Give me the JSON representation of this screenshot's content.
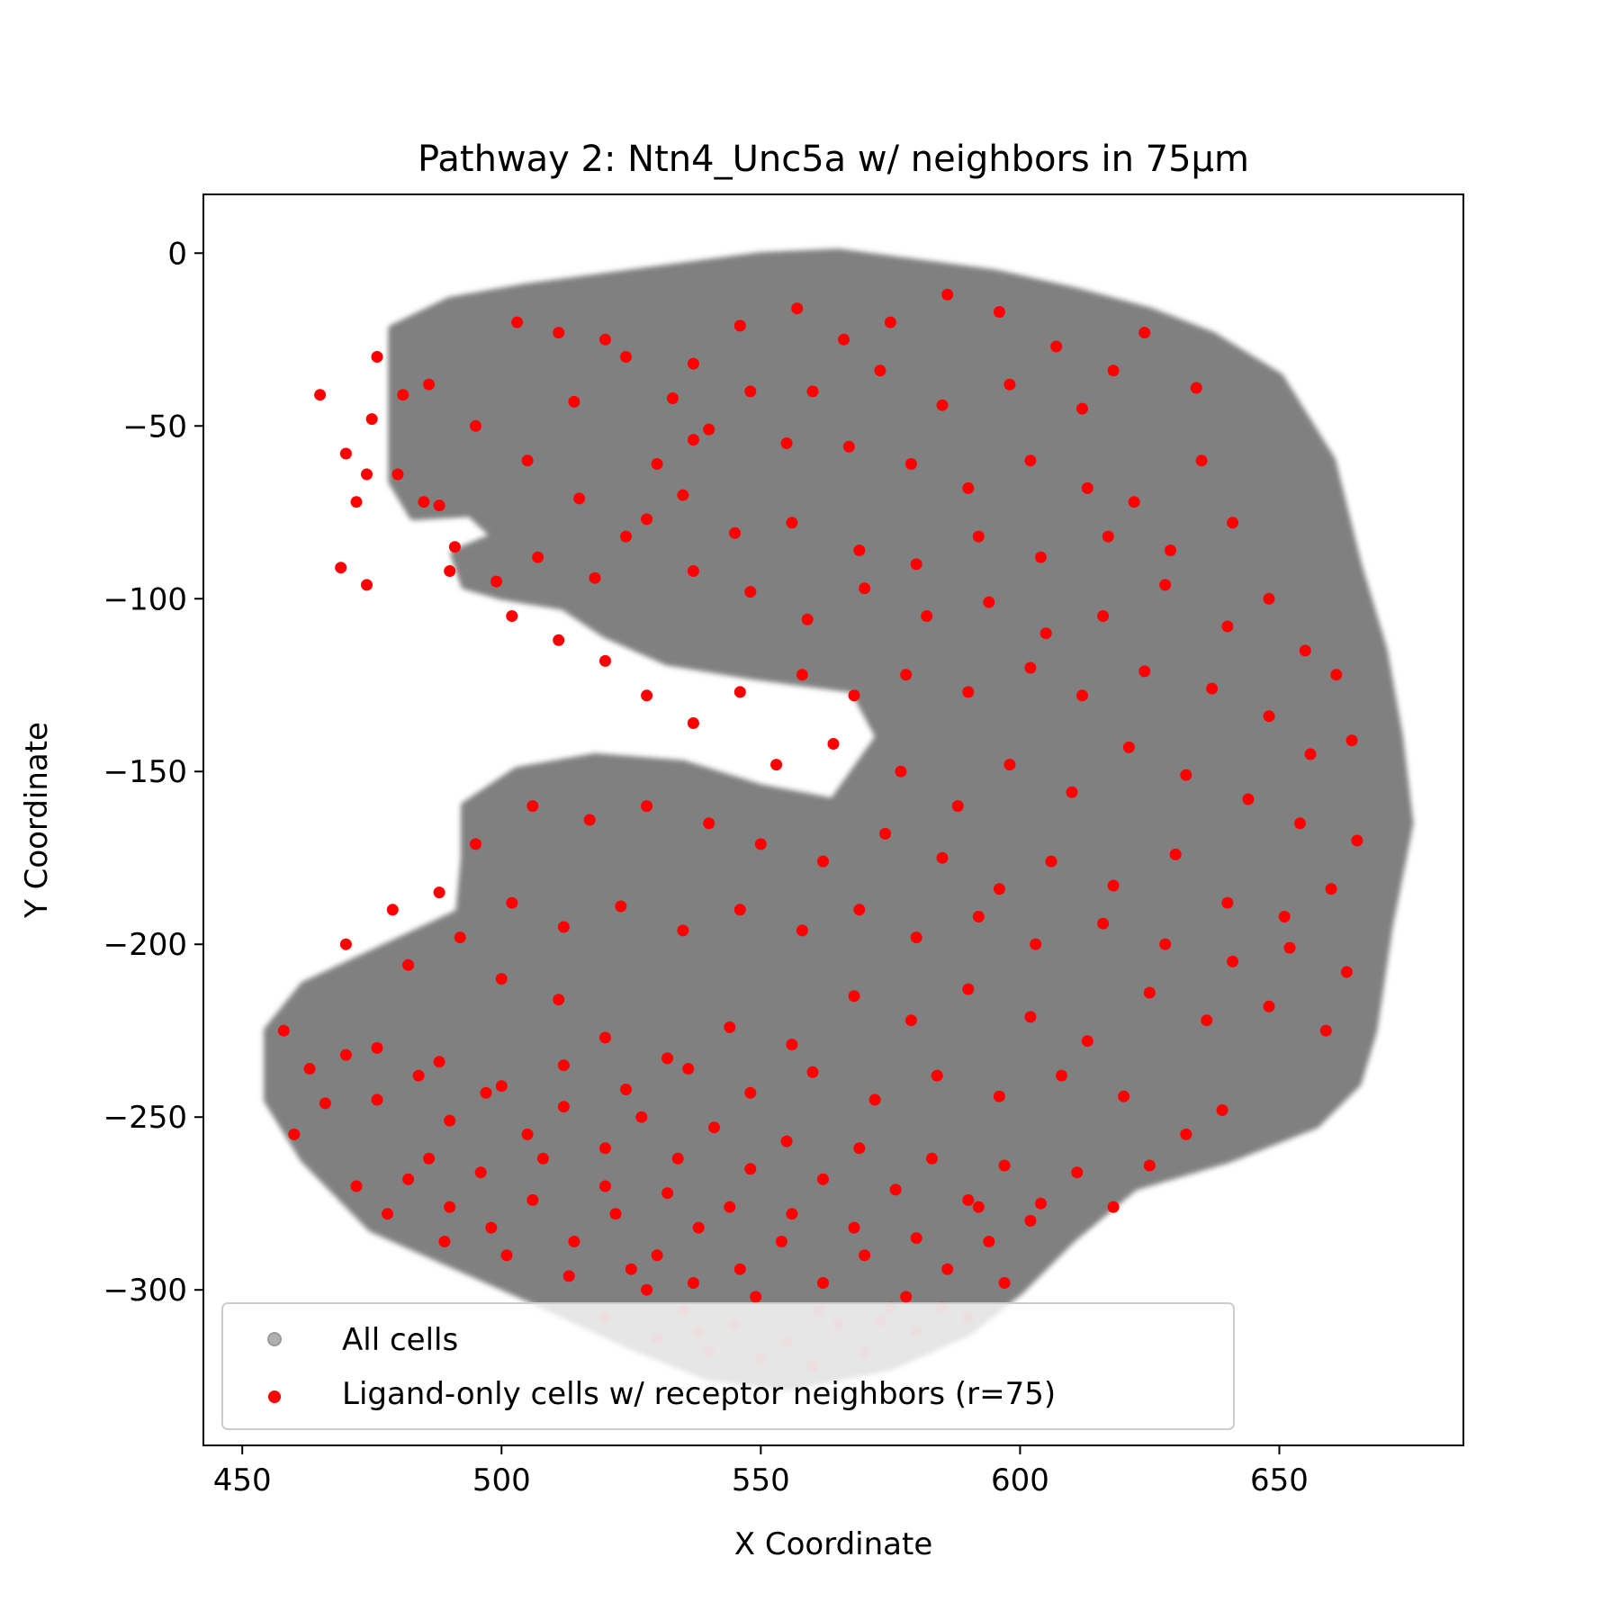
{
  "chart_data": {
    "type": "scatter",
    "title": "Pathway 2: Ntn4_Unc5a w/ neighbors in 75µm",
    "xlabel": "X Coordinate",
    "ylabel": "Y Coordinate",
    "xlim": [
      442.5,
      685.5
    ],
    "ylim": [
      -345,
      17
    ],
    "xticks": [
      450,
      500,
      550,
      600,
      650
    ],
    "yticks": [
      0,
      -50,
      -100,
      -150,
      -200,
      -250,
      -300
    ],
    "xtick_labels": [
      "450",
      "500",
      "550",
      "600",
      "650"
    ],
    "ytick_labels": [
      "0",
      "−50",
      "−100",
      "−150",
      "−200",
      "−250",
      "−300"
    ],
    "grid": false,
    "legend_position": "lower-left",
    "series": [
      {
        "name": "All cells",
        "color": "#808080",
        "kind": "tissue-cloud",
        "outline": [
          [
            479,
            -22
          ],
          [
            490,
            -14
          ],
          [
            505,
            -10
          ],
          [
            520,
            -7
          ],
          [
            535,
            -4
          ],
          [
            550,
            -1
          ],
          [
            565,
            0
          ],
          [
            580,
            -3
          ],
          [
            595,
            -6
          ],
          [
            610,
            -11
          ],
          [
            625,
            -17
          ],
          [
            637,
            -24
          ],
          [
            650,
            -36
          ],
          [
            660,
            -60
          ],
          [
            665,
            -90
          ],
          [
            670,
            -115
          ],
          [
            673,
            -140
          ],
          [
            675,
            -165
          ],
          [
            671,
            -195
          ],
          [
            668,
            -225
          ],
          [
            665,
            -240
          ],
          [
            657,
            -252
          ],
          [
            640,
            -262
          ],
          [
            622,
            -270
          ],
          [
            610,
            -285
          ],
          [
            600,
            -300
          ],
          [
            590,
            -312
          ],
          [
            575,
            -322
          ],
          [
            555,
            -328
          ],
          [
            540,
            -325
          ],
          [
            525,
            -316
          ],
          [
            505,
            -302
          ],
          [
            490,
            -292
          ],
          [
            475,
            -282
          ],
          [
            462,
            -262
          ],
          [
            455,
            -245
          ],
          [
            455,
            -225
          ],
          [
            462,
            -212
          ],
          [
            472,
            -205
          ],
          [
            482,
            -198
          ],
          [
            492,
            -191
          ],
          [
            493,
            -175
          ],
          [
            493,
            -160
          ],
          [
            503,
            -150
          ],
          [
            518,
            -146
          ],
          [
            535,
            -148
          ],
          [
            550,
            -155
          ],
          [
            564,
            -159
          ],
          [
            573,
            -140
          ],
          [
            568,
            -126
          ],
          [
            548,
            -122
          ],
          [
            532,
            -118
          ],
          [
            520,
            -110
          ],
          [
            512,
            -102
          ],
          [
            500,
            -99
          ],
          [
            493,
            -96
          ],
          [
            491,
            -87
          ],
          [
            499,
            -82
          ],
          [
            494,
            -75
          ],
          [
            483,
            -76
          ],
          [
            479,
            -66
          ]
        ]
      },
      {
        "name": "Ligand-only cells w/ receptor neighbors (r=75)",
        "color": "#ff0000",
        "kind": "cells",
        "points": [
          [
            481,
            -41
          ],
          [
            486,
            -38
          ],
          [
            476,
            -30
          ],
          [
            470,
            -58
          ],
          [
            480,
            -64
          ],
          [
            475,
            -48
          ],
          [
            465,
            -41
          ],
          [
            472,
            -72
          ],
          [
            485,
            -72
          ],
          [
            469,
            -91
          ],
          [
            474,
            -96
          ],
          [
            488,
            -73
          ],
          [
            474,
            -64
          ],
          [
            491,
            -85
          ],
          [
            503,
            -20
          ],
          [
            511,
            -23
          ],
          [
            520,
            -25
          ],
          [
            524,
            -30
          ],
          [
            533,
            -42
          ],
          [
            537,
            -54
          ],
          [
            530,
            -61
          ],
          [
            514,
            -43
          ],
          [
            495,
            -50
          ],
          [
            505,
            -60
          ],
          [
            515,
            -71
          ],
          [
            524,
            -82
          ],
          [
            518,
            -94
          ],
          [
            507,
            -88
          ],
          [
            499,
            -95
          ],
          [
            490,
            -92
          ],
          [
            537,
            -32
          ],
          [
            546,
            -21
          ],
          [
            557,
            -16
          ],
          [
            566,
            -25
          ],
          [
            575,
            -20
          ],
          [
            586,
            -12
          ],
          [
            596,
            -17
          ],
          [
            607,
            -27
          ],
          [
            618,
            -34
          ],
          [
            624,
            -23
          ],
          [
            634,
            -39
          ],
          [
            612,
            -45
          ],
          [
            598,
            -38
          ],
          [
            585,
            -44
          ],
          [
            573,
            -34
          ],
          [
            560,
            -40
          ],
          [
            548,
            -40
          ],
          [
            540,
            -51
          ],
          [
            555,
            -55
          ],
          [
            567,
            -56
          ],
          [
            579,
            -61
          ],
          [
            590,
            -68
          ],
          [
            602,
            -60
          ],
          [
            613,
            -68
          ],
          [
            622,
            -72
          ],
          [
            635,
            -60
          ],
          [
            641,
            -78
          ],
          [
            629,
            -86
          ],
          [
            617,
            -82
          ],
          [
            604,
            -88
          ],
          [
            592,
            -82
          ],
          [
            580,
            -90
          ],
          [
            569,
            -86
          ],
          [
            556,
            -78
          ],
          [
            545,
            -81
          ],
          [
            535,
            -70
          ],
          [
            528,
            -77
          ],
          [
            537,
            -92
          ],
          [
            548,
            -98
          ],
          [
            559,
            -106
          ],
          [
            570,
            -97
          ],
          [
            582,
            -105
          ],
          [
            594,
            -101
          ],
          [
            605,
            -110
          ],
          [
            616,
            -105
          ],
          [
            628,
            -96
          ],
          [
            640,
            -108
          ],
          [
            648,
            -100
          ],
          [
            655,
            -115
          ],
          [
            661,
            -122
          ],
          [
            664,
            -141
          ],
          [
            656,
            -145
          ],
          [
            648,
            -134
          ],
          [
            637,
            -126
          ],
          [
            624,
            -121
          ],
          [
            612,
            -128
          ],
          [
            602,
            -120
          ],
          [
            590,
            -127
          ],
          [
            578,
            -122
          ],
          [
            568,
            -128
          ],
          [
            558,
            -122
          ],
          [
            546,
            -127
          ],
          [
            537,
            -136
          ],
          [
            528,
            -128
          ],
          [
            520,
            -118
          ],
          [
            511,
            -112
          ],
          [
            502,
            -105
          ],
          [
            553,
            -148
          ],
          [
            564,
            -142
          ],
          [
            577,
            -150
          ],
          [
            588,
            -160
          ],
          [
            598,
            -148
          ],
          [
            610,
            -156
          ],
          [
            621,
            -143
          ],
          [
            632,
            -151
          ],
          [
            644,
            -158
          ],
          [
            654,
            -165
          ],
          [
            665,
            -170
          ],
          [
            660,
            -184
          ],
          [
            651,
            -192
          ],
          [
            640,
            -188
          ],
          [
            630,
            -174
          ],
          [
            618,
            -183
          ],
          [
            606,
            -176
          ],
          [
            596,
            -184
          ],
          [
            585,
            -175
          ],
          [
            574,
            -168
          ],
          [
            562,
            -176
          ],
          [
            550,
            -171
          ],
          [
            540,
            -165
          ],
          [
            528,
            -160
          ],
          [
            517,
            -164
          ],
          [
            506,
            -160
          ],
          [
            495,
            -171
          ],
          [
            488,
            -185
          ],
          [
            479,
            -190
          ],
          [
            470,
            -200
          ],
          [
            500,
            -210
          ],
          [
            511,
            -216
          ],
          [
            520,
            -227
          ],
          [
            532,
            -233
          ],
          [
            544,
            -224
          ],
          [
            556,
            -229
          ],
          [
            568,
            -215
          ],
          [
            579,
            -222
          ],
          [
            590,
            -213
          ],
          [
            602,
            -221
          ],
          [
            613,
            -228
          ],
          [
            625,
            -214
          ],
          [
            636,
            -222
          ],
          [
            648,
            -218
          ],
          [
            659,
            -225
          ],
          [
            663,
            -208
          ],
          [
            652,
            -201
          ],
          [
            641,
            -205
          ],
          [
            628,
            -200
          ],
          [
            616,
            -194
          ],
          [
            603,
            -200
          ],
          [
            592,
            -192
          ],
          [
            580,
            -198
          ],
          [
            569,
            -190
          ],
          [
            558,
            -196
          ],
          [
            546,
            -190
          ],
          [
            535,
            -196
          ],
          [
            523,
            -189
          ],
          [
            512,
            -195
          ],
          [
            502,
            -188
          ],
          [
            492,
            -198
          ],
          [
            482,
            -206
          ],
          [
            458,
            -225
          ],
          [
            463,
            -236
          ],
          [
            470,
            -232
          ],
          [
            476,
            -245
          ],
          [
            484,
            -238
          ],
          [
            490,
            -251
          ],
          [
            497,
            -243
          ],
          [
            505,
            -255
          ],
          [
            512,
            -247
          ],
          [
            520,
            -259
          ],
          [
            527,
            -250
          ],
          [
            534,
            -262
          ],
          [
            541,
            -253
          ],
          [
            548,
            -265
          ],
          [
            555,
            -257
          ],
          [
            562,
            -268
          ],
          [
            569,
            -259
          ],
          [
            576,
            -271
          ],
          [
            583,
            -262
          ],
          [
            590,
            -274
          ],
          [
            597,
            -264
          ],
          [
            604,
            -275
          ],
          [
            611,
            -266
          ],
          [
            618,
            -276
          ],
          [
            625,
            -264
          ],
          [
            632,
            -255
          ],
          [
            639,
            -248
          ],
          [
            620,
            -244
          ],
          [
            608,
            -238
          ],
          [
            596,
            -244
          ],
          [
            584,
            -238
          ],
          [
            572,
            -245
          ],
          [
            560,
            -237
          ],
          [
            548,
            -243
          ],
          [
            536,
            -236
          ],
          [
            524,
            -242
          ],
          [
            512,
            -235
          ],
          [
            500,
            -241
          ],
          [
            488,
            -234
          ],
          [
            476,
            -230
          ],
          [
            466,
            -246
          ],
          [
            460,
            -255
          ],
          [
            482,
            -268
          ],
          [
            490,
            -276
          ],
          [
            498,
            -282
          ],
          [
            506,
            -274
          ],
          [
            514,
            -286
          ],
          [
            522,
            -278
          ],
          [
            530,
            -290
          ],
          [
            538,
            -282
          ],
          [
            546,
            -294
          ],
          [
            554,
            -286
          ],
          [
            562,
            -298
          ],
          [
            570,
            -290
          ],
          [
            578,
            -302
          ],
          [
            586,
            -294
          ],
          [
            594,
            -286
          ],
          [
            602,
            -280
          ],
          [
            597,
            -298
          ],
          [
            585,
            -305
          ],
          [
            573,
            -309
          ],
          [
            561,
            -306
          ],
          [
            549,
            -302
          ],
          [
            537,
            -298
          ],
          [
            525,
            -294
          ],
          [
            513,
            -296
          ],
          [
            501,
            -290
          ],
          [
            489,
            -286
          ],
          [
            478,
            -278
          ],
          [
            472,
            -270
          ],
          [
            486,
            -262
          ],
          [
            496,
            -266
          ],
          [
            508,
            -262
          ],
          [
            520,
            -270
          ],
          [
            532,
            -272
          ],
          [
            544,
            -276
          ],
          [
            556,
            -278
          ],
          [
            568,
            -282
          ],
          [
            580,
            -285
          ],
          [
            592,
            -276
          ],
          [
            520,
            -308
          ],
          [
            530,
            -314
          ],
          [
            540,
            -318
          ],
          [
            550,
            -320
          ],
          [
            560,
            -322
          ],
          [
            570,
            -318
          ],
          [
            580,
            -312
          ],
          [
            590,
            -308
          ],
          [
            545,
            -310
          ],
          [
            535,
            -306
          ],
          [
            555,
            -315
          ],
          [
            565,
            -310
          ],
          [
            575,
            -305
          ],
          [
            528,
            -300
          ],
          [
            538,
            -312
          ]
        ]
      }
    ]
  }
}
